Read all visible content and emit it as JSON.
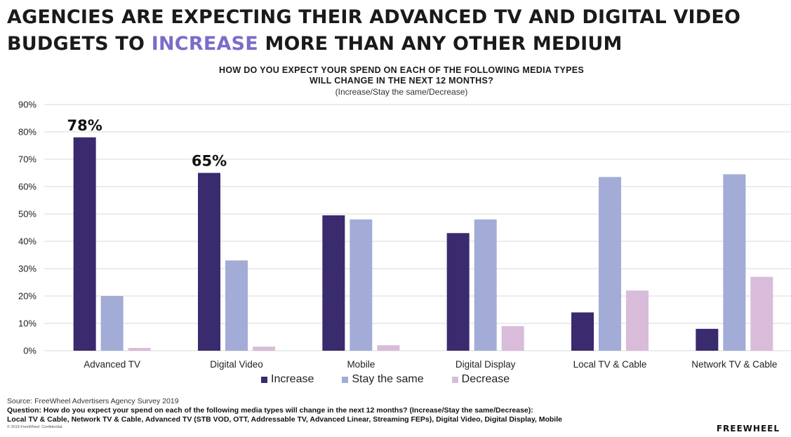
{
  "headline": {
    "part1": "AGENCIES ARE EXPECTING THEIR ADVANCED TV AND DIGITAL VIDEO BUDGETS TO ",
    "accent": "INCREASE",
    "part2": " MORE THAN ANY OTHER MEDIUM"
  },
  "question_title_line1": "HOW DO YOU EXPECT YOUR SPEND ON EACH OF THE FOLLOWING MEDIA TYPES",
  "question_title_line2": "WILL CHANGE IN THE NEXT 12 MONTHS?",
  "question_sub": "(Increase/Stay the same/Decrease)",
  "colors": {
    "increase": "#3a2a6e",
    "stay": "#a3acd6",
    "decrease": "#d8bcd9",
    "accent": "#7b6cc9",
    "grid": "#d9d9d9"
  },
  "chart_data": {
    "type": "bar",
    "categories": [
      "Advanced TV",
      "Digital Video",
      "Mobile",
      "Digital Display",
      "Local TV & Cable",
      "Network TV & Cable"
    ],
    "series": [
      {
        "name": "Increase",
        "values": [
          78,
          65,
          49.5,
          43,
          14,
          8
        ]
      },
      {
        "name": "Stay the same",
        "values": [
          20,
          33,
          48,
          48,
          63.5,
          64.5
        ]
      },
      {
        "name": "Decrease",
        "values": [
          1,
          1.5,
          2,
          9,
          22,
          27
        ]
      }
    ],
    "ylim": [
      0,
      90
    ],
    "yticks": [
      "0%",
      "10%",
      "20%",
      "30%",
      "40%",
      "50%",
      "60%",
      "70%",
      "80%",
      "90%"
    ],
    "grid": true,
    "legend": "bottom",
    "annotations": [
      {
        "category": "Advanced TV",
        "series": "Increase",
        "text": "78%"
      },
      {
        "category": "Digital Video",
        "series": "Increase",
        "text": "65%"
      }
    ]
  },
  "footer": {
    "source": "Source: FreeWheel Advertisers Agency Survey 2019",
    "question": "Question: How do you expect your spend on each of the following media types will change in the next 12 months? (Increase/Stay the same/Decrease):",
    "media": "Local TV & Cable, Network TV & Cable, Advanced TV (STB VOD, OTT, Addressable TV, Advanced Linear, Streaming FEPs), Digital Video, Digital Display, Mobile",
    "confidential": "© 2019 FreeWheel. Confidential."
  },
  "brand": "FREEWHEEL"
}
